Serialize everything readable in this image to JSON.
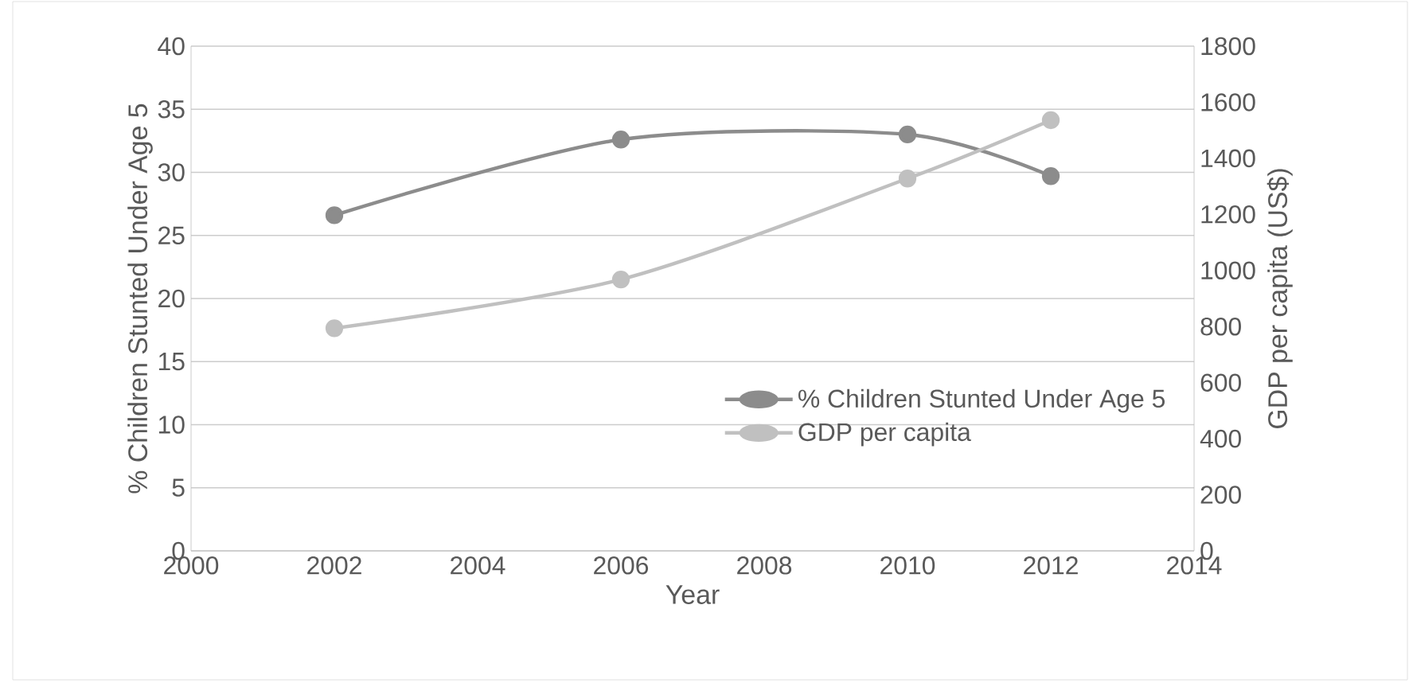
{
  "chart_data": {
    "type": "line",
    "xlabel": "Year",
    "ylabel": "% Children Stunted Under Age 5",
    "y2label": "GDP per capita (US$)",
    "x": [
      2002,
      2006,
      2010,
      2012
    ],
    "series": [
      {
        "name": "% Children Stunted Under Age 5",
        "color": "#8c8c8c",
        "values": [
          26.6,
          32.6,
          33.0,
          29.7
        ]
      },
      {
        "name": "GDP per capita",
        "color": "#c0c0c0",
        "values": [
          794,
          968,
          1328,
          1536
        ],
        "axis": "y2"
      }
    ],
    "xlim": [
      2000,
      2014
    ],
    "xticks": [
      2000,
      2002,
      2004,
      2006,
      2008,
      2010,
      2012,
      2014
    ],
    "ylim": [
      0,
      40
    ],
    "yticks": [
      0,
      5,
      10,
      15,
      20,
      25,
      30,
      35,
      40
    ],
    "y2lim": [
      0,
      1800
    ],
    "y2ticks": [
      0,
      200,
      400,
      600,
      800,
      1000,
      1200,
      1400,
      1600,
      1800
    ],
    "grid": "y",
    "legend": "bottom right",
    "marker": "circle",
    "line_style": "solid"
  }
}
